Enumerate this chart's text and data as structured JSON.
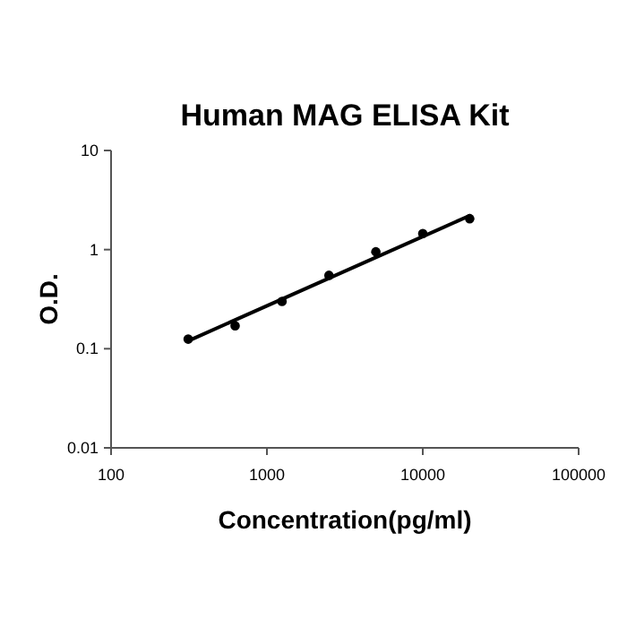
{
  "chart_data": {
    "type": "scatter",
    "title": "Human MAG ELISA Kit",
    "xlabel": "Concentration(pg/ml)",
    "ylabel": "O.D.",
    "log": "xy",
    "xlim": [
      100,
      100000
    ],
    "xticks": [
      100,
      1000,
      10000,
      100000
    ],
    "ylim": [
      0.01,
      10
    ],
    "yticks": [
      0.01,
      0.1,
      1,
      10
    ],
    "grid": false,
    "marker": "circle",
    "series": [
      {
        "color": "#000000",
        "x": [
          312.5,
          625,
          1250,
          2500,
          5000,
          10000,
          20000
        ],
        "values": [
          0.125,
          0.17,
          0.3,
          0.55,
          0.95,
          1.45,
          2.05
        ]
      },
      {
        "type": "line",
        "color": "#000000",
        "line_style": "solid",
        "marker": "none",
        "x": [
          312.5,
          20000
        ],
        "values": [
          0.12,
          2.2
        ]
      }
    ]
  }
}
